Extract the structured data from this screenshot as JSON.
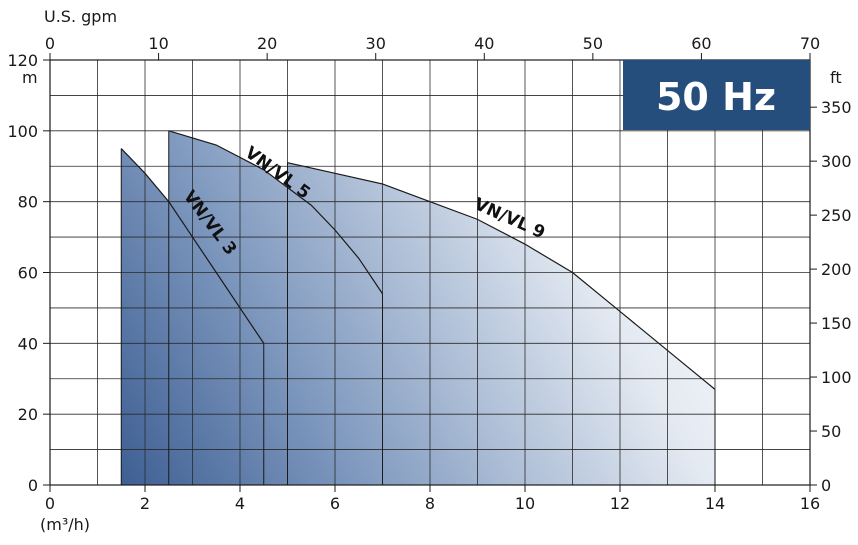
{
  "chart_data": {
    "type": "area",
    "title": "",
    "badge": "50 Hz",
    "x_primary": {
      "unit_label": "(m³/h)",
      "range": [
        0,
        16
      ],
      "ticks": [
        0,
        2,
        4,
        6,
        8,
        10,
        12,
        14,
        16
      ]
    },
    "x_secondary": {
      "unit_label": "U.S. gpm",
      "range": [
        0,
        70
      ],
      "ticks": [
        0,
        10,
        20,
        30,
        40,
        50,
        60,
        70
      ]
    },
    "y_primary": {
      "unit_label": "m",
      "range": [
        0,
        120
      ],
      "ticks": [
        0,
        20,
        40,
        60,
        80,
        100,
        120
      ]
    },
    "y_secondary": {
      "unit_label": "ft",
      "ticks": [
        0,
        50,
        100,
        150,
        200,
        250,
        300,
        350
      ]
    },
    "grid": true,
    "series": [
      {
        "name": "VN/VL 3",
        "points": [
          [
            1.5,
            95
          ],
          [
            2.0,
            88
          ],
          [
            2.5,
            80
          ],
          [
            3.0,
            70
          ],
          [
            3.5,
            60
          ],
          [
            4.0,
            50
          ],
          [
            4.5,
            40
          ]
        ]
      },
      {
        "name": "VN/VL 5",
        "points": [
          [
            2.5,
            100
          ],
          [
            3.5,
            96
          ],
          [
            4.5,
            89
          ],
          [
            5.5,
            79
          ],
          [
            6.0,
            72
          ],
          [
            6.5,
            64
          ],
          [
            7.0,
            54
          ]
        ]
      },
      {
        "name": "VN/VL 9",
        "points": [
          [
            5.0,
            91
          ],
          [
            6.0,
            88
          ],
          [
            7.0,
            85
          ],
          [
            8.0,
            80
          ],
          [
            9.0,
            75
          ],
          [
            10.0,
            68
          ],
          [
            11.0,
            60
          ],
          [
            12.0,
            49
          ],
          [
            13.0,
            38
          ],
          [
            14.0,
            27
          ]
        ]
      }
    ]
  }
}
